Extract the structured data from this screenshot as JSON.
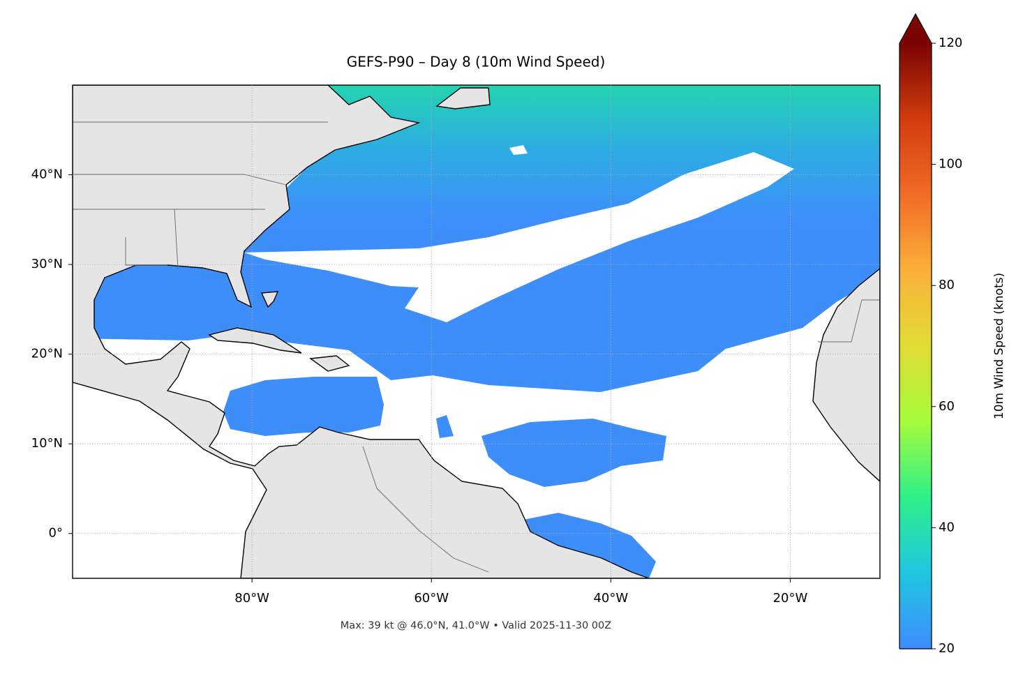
{
  "map": {
    "title": "GEFS-P90 – Day 8 (10m Wind Speed)",
    "footer": "Max: 39 kt @ 46.0°N, 41.0°W • Valid 2025-11-30 00Z",
    "xlim": [
      -100,
      -10
    ],
    "ylim": [
      -5,
      50
    ],
    "xticks": [
      {
        "value": -80,
        "label": "80°W"
      },
      {
        "value": -60,
        "label": "60°W"
      },
      {
        "value": -40,
        "label": "40°W"
      },
      {
        "value": -20,
        "label": "20°W"
      }
    ],
    "yticks": [
      {
        "value": 0,
        "label": "0°"
      },
      {
        "value": 10,
        "label": "10°N"
      },
      {
        "value": 20,
        "label": "20°N"
      },
      {
        "value": 30,
        "label": "30°N"
      },
      {
        "value": 40,
        "label": "40°N"
      }
    ],
    "grid": true,
    "colorbar": {
      "label": "10m Wind Speed (knots)",
      "lim": [
        20,
        120
      ],
      "ticks": [
        20,
        40,
        60,
        80,
        100,
        120
      ],
      "extend": "max",
      "colors": [
        "#3f8cff",
        "#1fc6e0",
        "#2ef08a",
        "#a4fc3c",
        "#e2dc36",
        "#fbb03a",
        "#f26b26",
        "#d23c0d",
        "#7a0403"
      ]
    }
  }
}
